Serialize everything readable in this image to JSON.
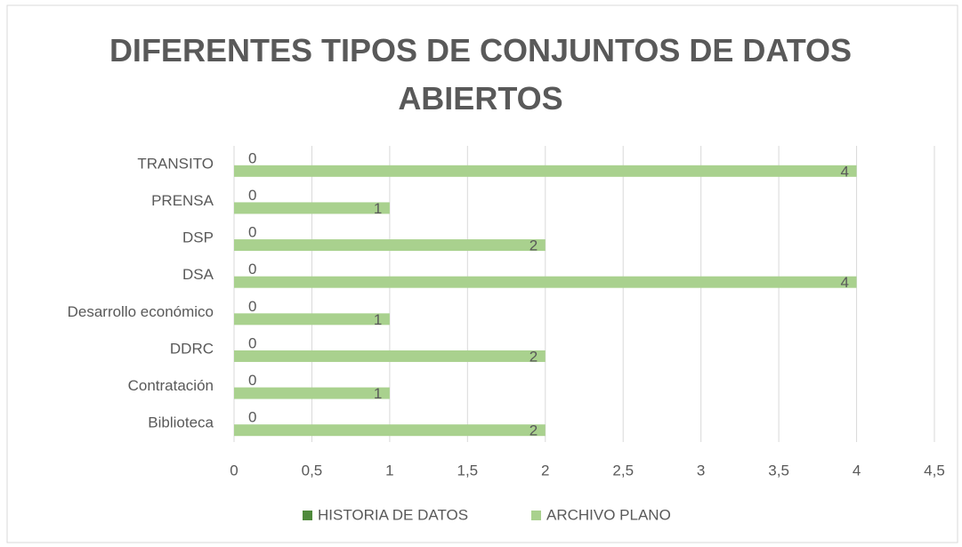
{
  "chart_data": {
    "type": "bar",
    "orientation": "horizontal",
    "title": "DIFERENTES TIPOS DE CONJUNTOS DE DATOS ABIERTOS",
    "categories": [
      "Biblioteca",
      "Contratación",
      "DDRC",
      "Desarrollo económico",
      "DSA",
      "DSP",
      "PRENSA",
      "TRANSITO"
    ],
    "series": [
      {
        "name": "HISTORIA DE DATOS",
        "color": "#4f8a3c",
        "values": [
          0,
          0,
          0,
          0,
          0,
          0,
          0,
          0
        ]
      },
      {
        "name": "ARCHIVO PLANO",
        "color": "#a9d18e",
        "values": [
          2,
          1,
          2,
          1,
          4,
          2,
          1,
          4
        ]
      }
    ],
    "xlim": [
      0,
      4.5
    ],
    "xticks": [
      0,
      {
        "value": 0.5,
        "label": "0,5"
      },
      1,
      {
        "value": 1.5,
        "label": "1,5"
      },
      2,
      {
        "value": 2.5,
        "label": "2,5"
      },
      3,
      {
        "value": 3.5,
        "label": "3,5"
      },
      4,
      {
        "value": 4.5,
        "label": "4,5"
      }
    ],
    "grid": true,
    "legend": "bottom"
  }
}
